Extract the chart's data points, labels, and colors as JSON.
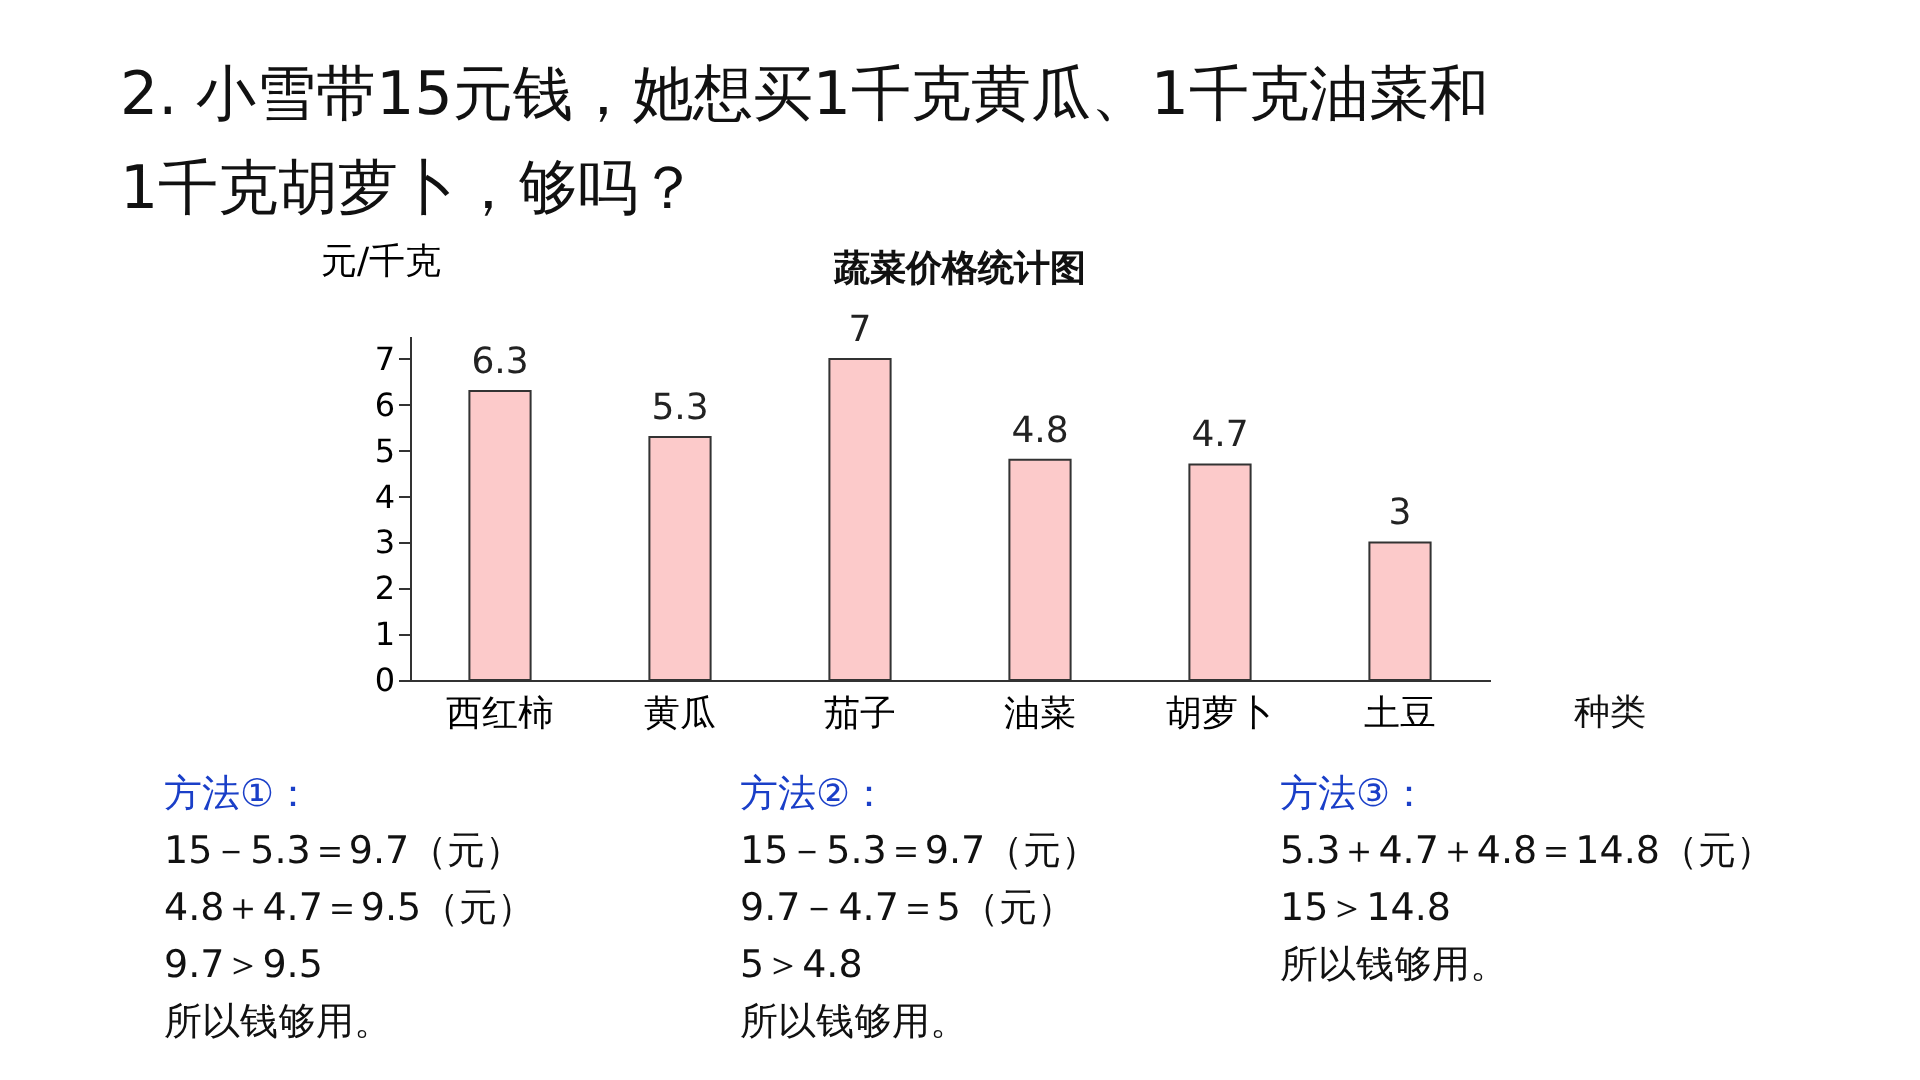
{
  "chart_data": {
    "type": "bar",
    "title": "蔬菜价格统计图",
    "ylabel": "元/千克",
    "xlabel": "种类",
    "categories": [
      "西红柿",
      "黄瓜",
      "茄子",
      "油菜",
      "胡萝卜",
      "土豆"
    ],
    "values": [
      6.3,
      5.3,
      7,
      4.8,
      4.7,
      3
    ],
    "color": "#fccaca",
    "data_labels": true,
    "ylim": [
      0,
      7.5
    ],
    "yticks": [
      0,
      1,
      2,
      3,
      4,
      5,
      6,
      7
    ],
    "grid": false,
    "annotations": [
      "2. 小雪带15元钱，她想买1千克黄瓜、1千克油菜和",
      "1千克胡萝卜，够吗？",
      "方法①：",
      "15－5.3＝9.7（元）",
      "4.8＋4.7＝9.5（元）",
      "9.7＞9.5",
      "所以钱够用。",
      "方法②：",
      "15－5.3＝9.7（元）",
      "9.7－4.7＝5（元）",
      "5＞4.8",
      "所以钱够用。",
      "方法③：",
      "5.3＋4.7＋4.8＝14.8（元）",
      "15＞14.8",
      "所以钱够用。"
    ]
  }
}
